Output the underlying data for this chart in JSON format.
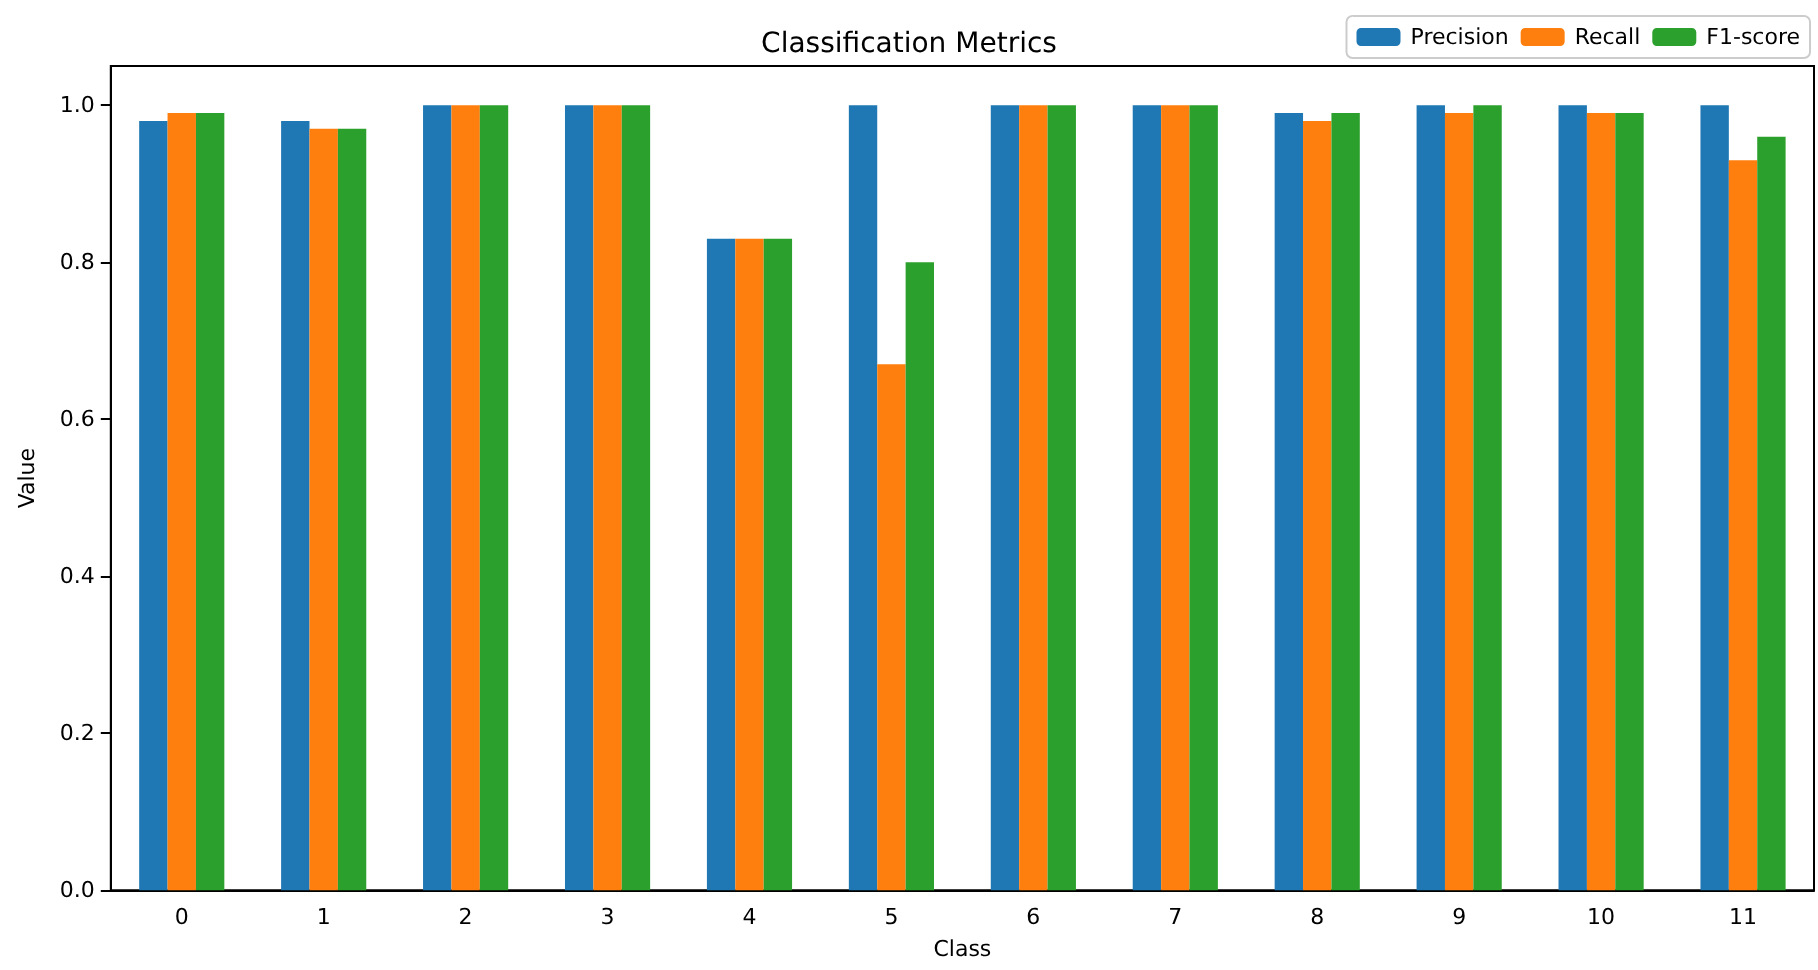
{
  "chart_data": {
    "type": "bar",
    "title": "Classification Metrics",
    "xlabel": "Class",
    "ylabel": "Value",
    "categories": [
      "0",
      "1",
      "2",
      "3",
      "4",
      "5",
      "6",
      "7",
      "8",
      "9",
      "10",
      "11"
    ],
    "series": [
      {
        "name": "Precision",
        "color": "#1f77b4",
        "values": [
          0.98,
          0.98,
          1.0,
          1.0,
          0.83,
          1.0,
          1.0,
          1.0,
          0.99,
          1.0,
          1.0,
          1.0
        ]
      },
      {
        "name": "Recall",
        "color": "#ff7f0e",
        "values": [
          0.99,
          0.97,
          1.0,
          1.0,
          0.83,
          0.67,
          1.0,
          1.0,
          0.98,
          0.99,
          0.99,
          0.93
        ]
      },
      {
        "name": "F1-score",
        "color": "#2ca02c",
        "values": [
          0.99,
          0.97,
          1.0,
          1.0,
          0.83,
          0.8,
          1.0,
          1.0,
          0.99,
          1.0,
          0.99,
          0.96
        ]
      }
    ],
    "ylim": [
      0,
      1.05
    ],
    "yticks": [
      {
        "value": 0,
        "label": "0.0"
      },
      {
        "value": 0.2,
        "label": "0.2"
      },
      {
        "value": 0.4,
        "label": "0.4"
      },
      {
        "value": 0.6,
        "label": "0.6"
      },
      {
        "value": 0.8,
        "label": "0.8"
      },
      {
        "value": 1,
        "label": "1.0"
      }
    ],
    "legend": "top right",
    "grid": false
  }
}
